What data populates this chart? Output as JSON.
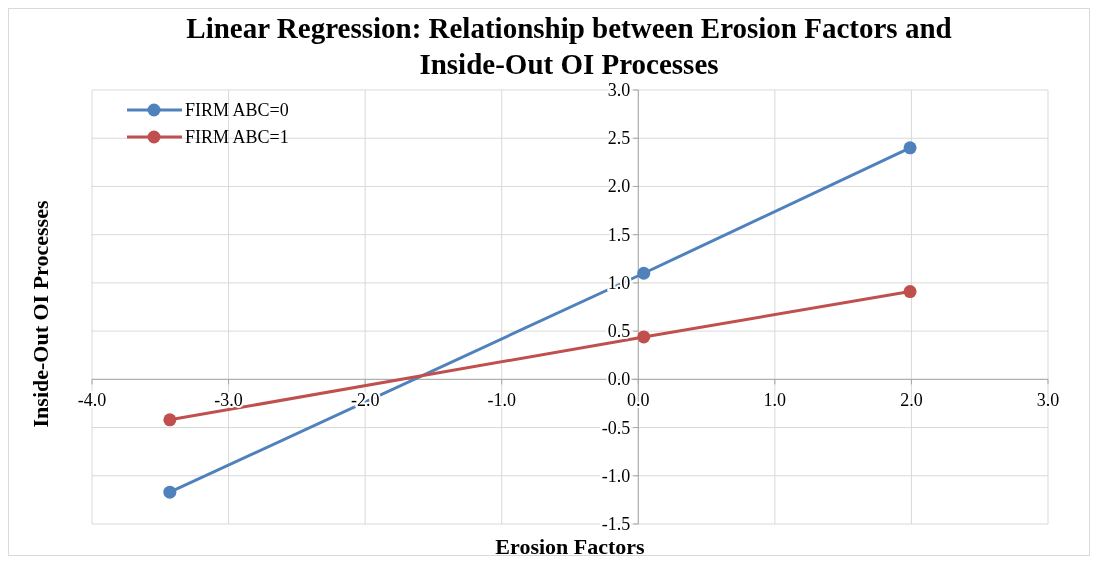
{
  "chart_data": {
    "type": "line",
    "title": "Linear Regression: Relationship between Erosion Factors and Inside-Out OI Processes",
    "xlabel": "Erosion Factors",
    "ylabel": "Inside-Out OI Processes",
    "x": [
      -3.43,
      0.04,
      1.99
    ],
    "series": [
      {
        "name": "FIRM ABC=0",
        "color": "#4f81bd",
        "values": [
          -1.17,
          1.1,
          2.4
        ]
      },
      {
        "name": "FIRM ABC=1",
        "color": "#c0504d",
        "values": [
          -0.42,
          0.44,
          0.91
        ]
      }
    ],
    "xlim": [
      -4,
      3
    ],
    "xticks": [
      {
        "value": -4,
        "label": "-4.0"
      },
      {
        "value": -3,
        "label": "-3.0"
      },
      {
        "value": -2,
        "label": "-2.0"
      },
      {
        "value": -1,
        "label": "-1.0"
      },
      {
        "value": 0,
        "label": "0.0"
      },
      {
        "value": 1,
        "label": "1.0"
      },
      {
        "value": 2,
        "label": "2.0"
      },
      {
        "value": 3,
        "label": "3.0"
      }
    ],
    "ylim": [
      -1.5,
      3
    ],
    "yticks": [
      {
        "value": -1.5,
        "label": "-1.5"
      },
      {
        "value": -1,
        "label": "-1.0"
      },
      {
        "value": -0.5,
        "label": "-0.5"
      },
      {
        "value": 0,
        "label": "0.0"
      },
      {
        "value": 0.5,
        "label": "0.5"
      },
      {
        "value": 1,
        "label": "1.0"
      },
      {
        "value": 1.5,
        "label": "1.5"
      },
      {
        "value": 2,
        "label": "2.0"
      },
      {
        "value": 2.5,
        "label": "2.5"
      },
      {
        "value": 3,
        "label": "3.0"
      }
    ],
    "grid": true,
    "legend": "top left",
    "marker": "circle",
    "line_style": "solid"
  }
}
